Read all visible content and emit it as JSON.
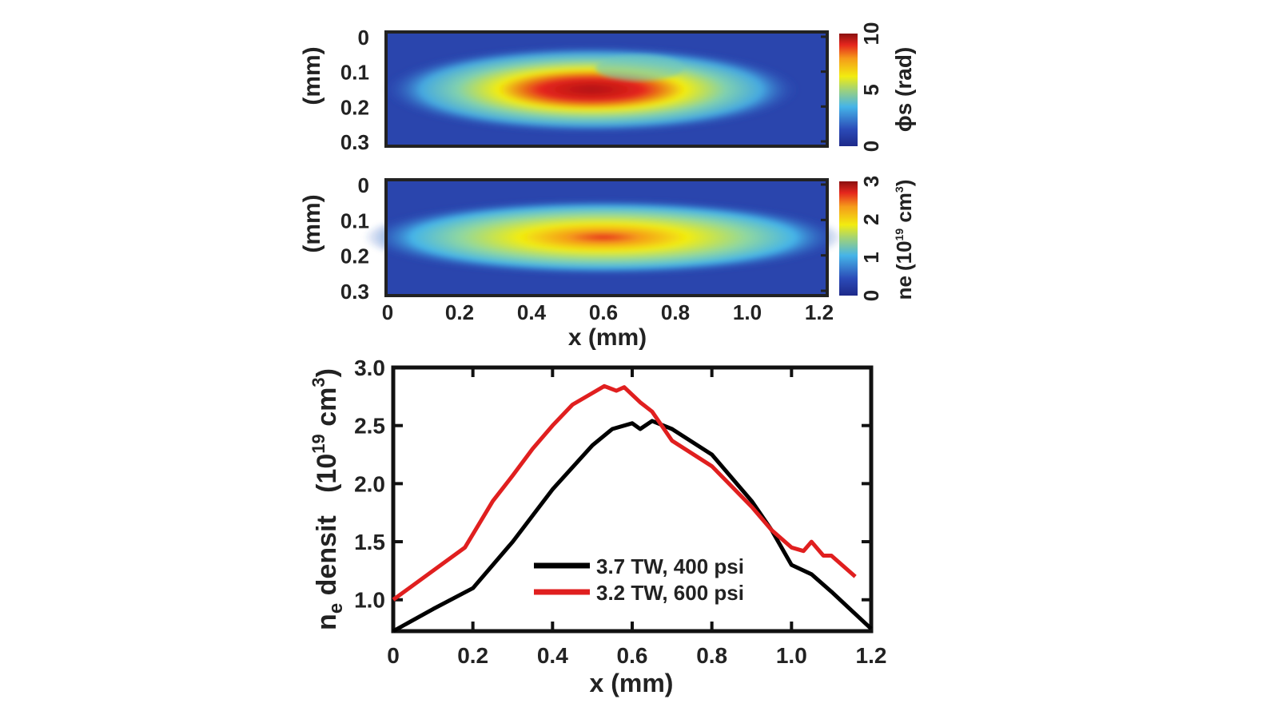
{
  "chart_data": [
    {
      "type": "heatmap",
      "ylabel": "(mm)",
      "yticks": [
        "0",
        "0.1",
        "0.2",
        "0.3"
      ],
      "xlim": [
        0,
        1.2
      ],
      "ylim": [
        0,
        0.3
      ],
      "colorbar": {
        "label": "ϕs (rad)",
        "ticks": [
          "0",
          "5",
          "10"
        ],
        "range": [
          0,
          10
        ],
        "colormap": "jet"
      }
    },
    {
      "type": "heatmap",
      "ylabel": "(mm)",
      "yticks": [
        "0",
        "0.1",
        "0.2",
        "0.3"
      ],
      "xlabel": "x (mm)",
      "xticks": [
        "0",
        "0.2",
        "0.4",
        "0.6",
        "0.8",
        "1.0",
        "1.2"
      ],
      "xlim": [
        0,
        1.2
      ],
      "ylim": [
        0,
        0.3
      ],
      "colorbar": {
        "label_main": "ne",
        "label_unit": "(10",
        "label_exp": "19",
        "label_unit2": " cm",
        "label_exp2": "3",
        "label_close": ")",
        "ticks": [
          "0",
          "1",
          "2",
          "3"
        ],
        "range": [
          0,
          3
        ],
        "colormap": "jet"
      }
    },
    {
      "type": "line",
      "xlabel": "x (mm)",
      "ylabel_main": "n",
      "ylabel_sub": "e",
      "ylabel_rest": " densit   (10",
      "ylabel_exp": "19",
      "ylabel_unit": " cm",
      "ylabel_exp2": "3",
      "ylabel_close": ")",
      "xlim": [
        0,
        1.2
      ],
      "ylim": [
        0.73,
        3.0
      ],
      "xticks": [
        "0",
        "0.2",
        "0.4",
        "0.6",
        "0.8",
        "1.0",
        "1.2"
      ],
      "yticks": [
        "1.0",
        "1.5",
        "2.0",
        "2.5",
        "3.0"
      ],
      "legend_position": "bottom-center",
      "series": [
        {
          "name": "3.7 TW, 400 psi",
          "color": "#000000",
          "x": [
            0,
            0.1,
            0.2,
            0.3,
            0.4,
            0.5,
            0.55,
            0.6,
            0.62,
            0.65,
            0.7,
            0.8,
            0.9,
            0.95,
            1.0,
            1.05,
            1.1,
            1.2
          ],
          "y": [
            0.73,
            0.92,
            1.1,
            1.5,
            1.95,
            2.33,
            2.47,
            2.52,
            2.47,
            2.54,
            2.47,
            2.25,
            1.85,
            1.6,
            1.3,
            1.22,
            1.07,
            0.75
          ]
        },
        {
          "name": "3.2 TW, 600 psi",
          "color": "#e01f1f",
          "x": [
            0,
            0.1,
            0.18,
            0.25,
            0.3,
            0.35,
            0.4,
            0.45,
            0.5,
            0.53,
            0.56,
            0.58,
            0.62,
            0.65,
            0.7,
            0.8,
            0.9,
            0.95,
            1.0,
            1.03,
            1.05,
            1.08,
            1.1,
            1.16
          ],
          "y": [
            1.0,
            1.25,
            1.45,
            1.85,
            2.07,
            2.3,
            2.5,
            2.68,
            2.78,
            2.84,
            2.8,
            2.83,
            2.7,
            2.62,
            2.37,
            2.15,
            1.8,
            1.6,
            1.45,
            1.42,
            1.5,
            1.38,
            1.38,
            1.2
          ]
        }
      ]
    }
  ]
}
